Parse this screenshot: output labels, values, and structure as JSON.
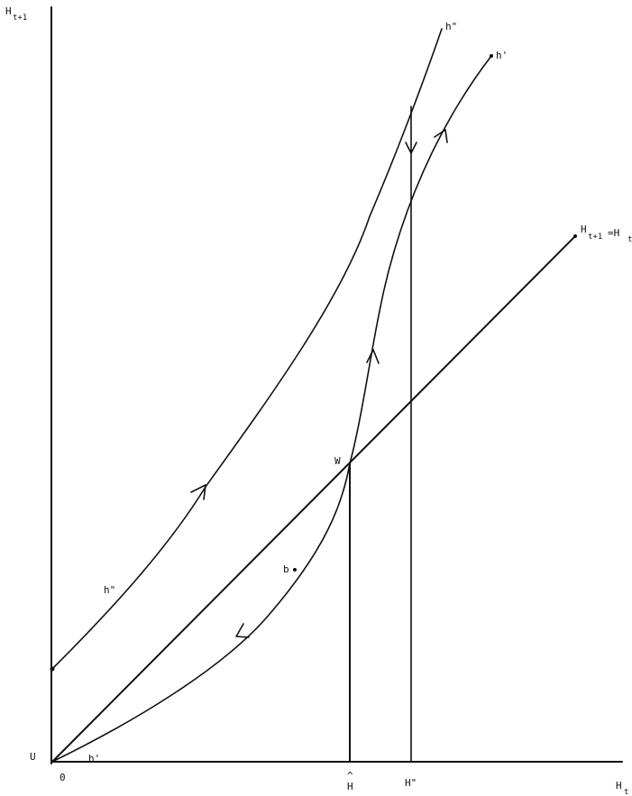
{
  "axes": {
    "y_label_main": "H",
    "y_label_sub": "t+1",
    "x_label_main": "H",
    "x_label_sub": "t",
    "origin_label": "0"
  },
  "curves": {
    "h_double_prime_top": "h\"",
    "h_double_prime_left": "h\"",
    "h_prime_top": "h'",
    "h_prime_bottom": "h'",
    "diagonal_main": "H",
    "diagonal_sub1": "t+1",
    "diagonal_eq": "=H",
    "diagonal_sub2": "t"
  },
  "points": {
    "W": "W",
    "U": "U",
    "b": "b"
  },
  "ticks": {
    "hat_mark": "^",
    "h_hat": "H",
    "h_double_prime": "H\""
  }
}
